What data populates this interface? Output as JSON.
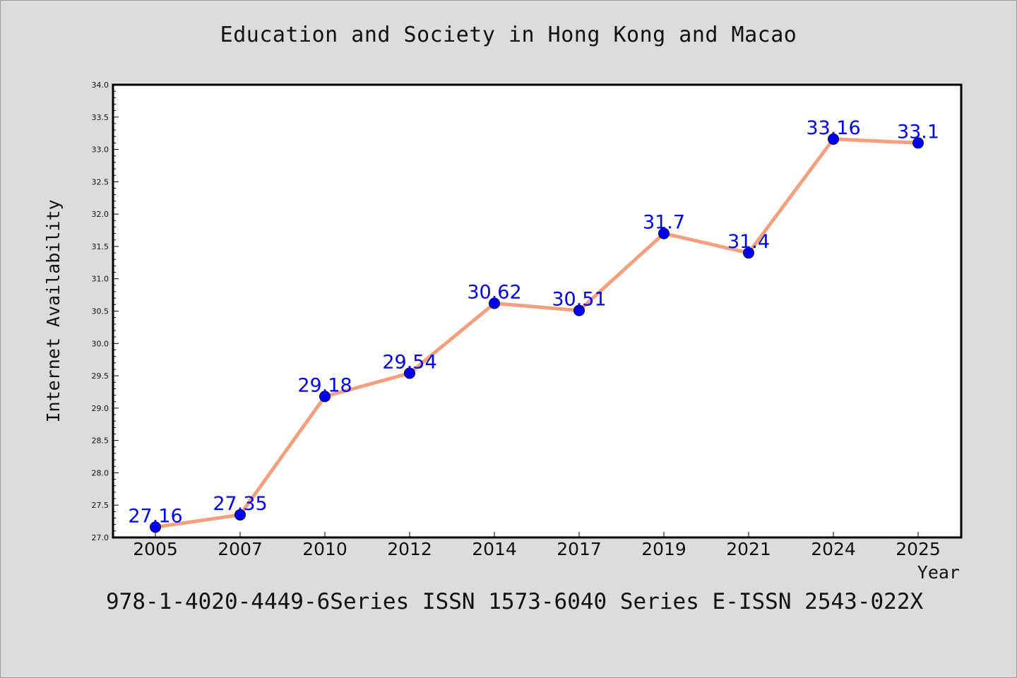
{
  "title": "Education and Society in Hong Kong and Macao",
  "footer": "978-1-4020-4449-6Series ISSN 1573-6040 Series E-ISSN 2543-022X",
  "colors": {
    "background": "#dcdcdc",
    "plot_background": "#ffffff",
    "line": "#f4a07e",
    "marker": "#0000ee",
    "data_label": "#0000ff"
  },
  "chart_data": {
    "type": "line",
    "title": "Education and Society in Hong Kong and Macao",
    "xlabel": "Year",
    "ylabel": "Internet Availability",
    "categories": [
      "2005",
      "2007",
      "2010",
      "2012",
      "2014",
      "2017",
      "2019",
      "2021",
      "2024",
      "2025"
    ],
    "values": [
      27.16,
      27.35,
      29.18,
      29.54,
      30.62,
      30.51,
      31.7,
      31.4,
      33.16,
      33.1
    ],
    "data_labels": [
      "27.16",
      "27.35",
      "29.18",
      "29.54",
      "30.62",
      "30.51",
      "31.7",
      "31.4",
      "33.16",
      "33.1"
    ],
    "ylim": [
      27.0,
      34.0
    ],
    "yticks": [
      "27.0",
      "27.5",
      "28.0",
      "28.5",
      "29.0",
      "29.5",
      "30.0",
      "30.5",
      "31.0",
      "31.5",
      "32.0",
      "32.5",
      "33.0",
      "33.5",
      "34.0"
    ],
    "grid": false,
    "legend": "none"
  }
}
